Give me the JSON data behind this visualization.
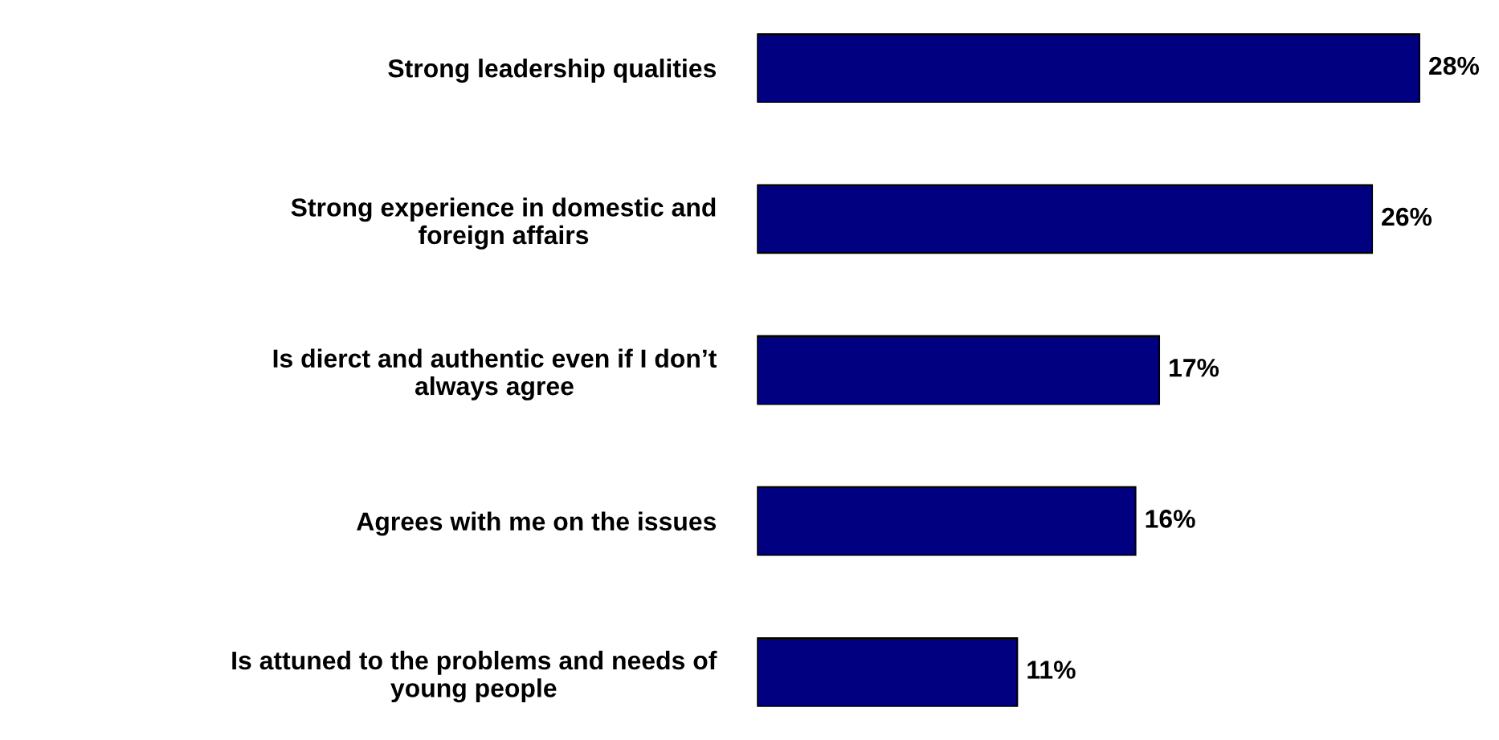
{
  "chart_data": {
    "type": "bar",
    "orientation": "horizontal",
    "categories": [
      "Strong leadership qualities",
      "Strong experience in domestic and\nforeign affairs",
      "Is dierct and authentic even if I don’t\nalways agree",
      "Agrees with me on the issues",
      "Is attuned to the problems and needs of\nyoung people"
    ],
    "values": [
      28,
      26,
      17,
      16,
      11
    ],
    "value_labels": [
      "28%",
      "26%",
      "17%",
      "16%",
      "11%"
    ],
    "color": "#000080",
    "grid": false,
    "legend": false
  }
}
